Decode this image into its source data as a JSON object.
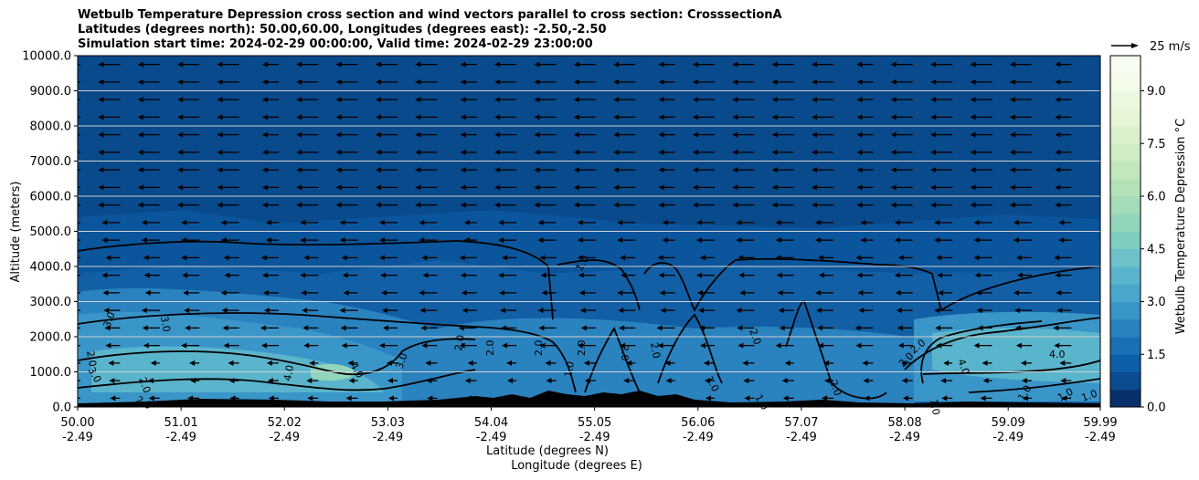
{
  "title_lines": [
    "Wetbulb Temperature Depression cross section and wind vectors parallel to cross section: CrosssectionA",
    "Latitudes (degrees north): 50.00,60.00, Longitudes (degrees east): -2.50,-2.50",
    "Simulation start time: 2024-02-29 00:00:00, Valid time: 2024-02-29 23:00:00"
  ],
  "chart_data": {
    "type": "heatmap",
    "ylabel": "Altitude (meters)",
    "xlabel_lines": [
      "Latitude (degrees N)",
      "Longitude (degrees E)"
    ],
    "x_range": [
      50.0,
      59.99
    ],
    "y_range": [
      0,
      10000
    ],
    "y_ticks": [
      "0.0",
      "1000.0",
      "2000.0",
      "3000.0",
      "4000.0",
      "5000.0",
      "6000.0",
      "7000.0",
      "8000.0",
      "9000.0",
      "10000.0"
    ],
    "y_tick_values": [
      0,
      1000,
      2000,
      3000,
      4000,
      5000,
      6000,
      7000,
      8000,
      9000,
      10000
    ],
    "x_ticks": [
      {
        "lat": "50.00",
        "lon": "-2.49"
      },
      {
        "lat": "51.01",
        "lon": "-2.49"
      },
      {
        "lat": "52.02",
        "lon": "-2.49"
      },
      {
        "lat": "53.03",
        "lon": "-2.49"
      },
      {
        "lat": "54.04",
        "lon": "-2.49"
      },
      {
        "lat": "55.05",
        "lon": "-2.49"
      },
      {
        "lat": "56.06",
        "lon": "-2.49"
      },
      {
        "lat": "57.07",
        "lon": "-2.49"
      },
      {
        "lat": "58.08",
        "lon": "-2.49"
      },
      {
        "lat": "59.09",
        "lon": "-2.49"
      },
      {
        "lat": "59.99",
        "lon": "-2.49"
      }
    ],
    "grid": "horizontal",
    "colorbar": {
      "label": "Wetbulb Temperature Depression °C",
      "range": [
        0.0,
        10.0
      ],
      "ticks": [
        "0.0",
        "1.5",
        "3.0",
        "4.5",
        "6.0",
        "7.5",
        "9.0"
      ],
      "tick_values": [
        0.0,
        1.5,
        3.0,
        4.5,
        6.0,
        7.5,
        9.0
      ],
      "levels": 20,
      "colors_low_to_high": [
        "#08306b",
        "#0a4c8f",
        "#0d5ea8",
        "#1a70b5",
        "#2a82bf",
        "#3a95c8",
        "#4aa6cc",
        "#5ab4cc",
        "#6cc2c8",
        "#7ecdc0",
        "#91d5bb",
        "#a3dcb6",
        "#b4e2b8",
        "#c2e7bd",
        "#cfecc4",
        "#dbf1cd",
        "#e5f5d6",
        "#edf8e0",
        "#f3fbe9",
        "#f7fcf0"
      ]
    },
    "contour_labels": [
      "1.0",
      "2.0",
      "3.0",
      "4.0"
    ],
    "wind_key": {
      "label": "25 m/s",
      "value": 25
    },
    "wind_direction": "toward decreasing latitude (left)"
  }
}
